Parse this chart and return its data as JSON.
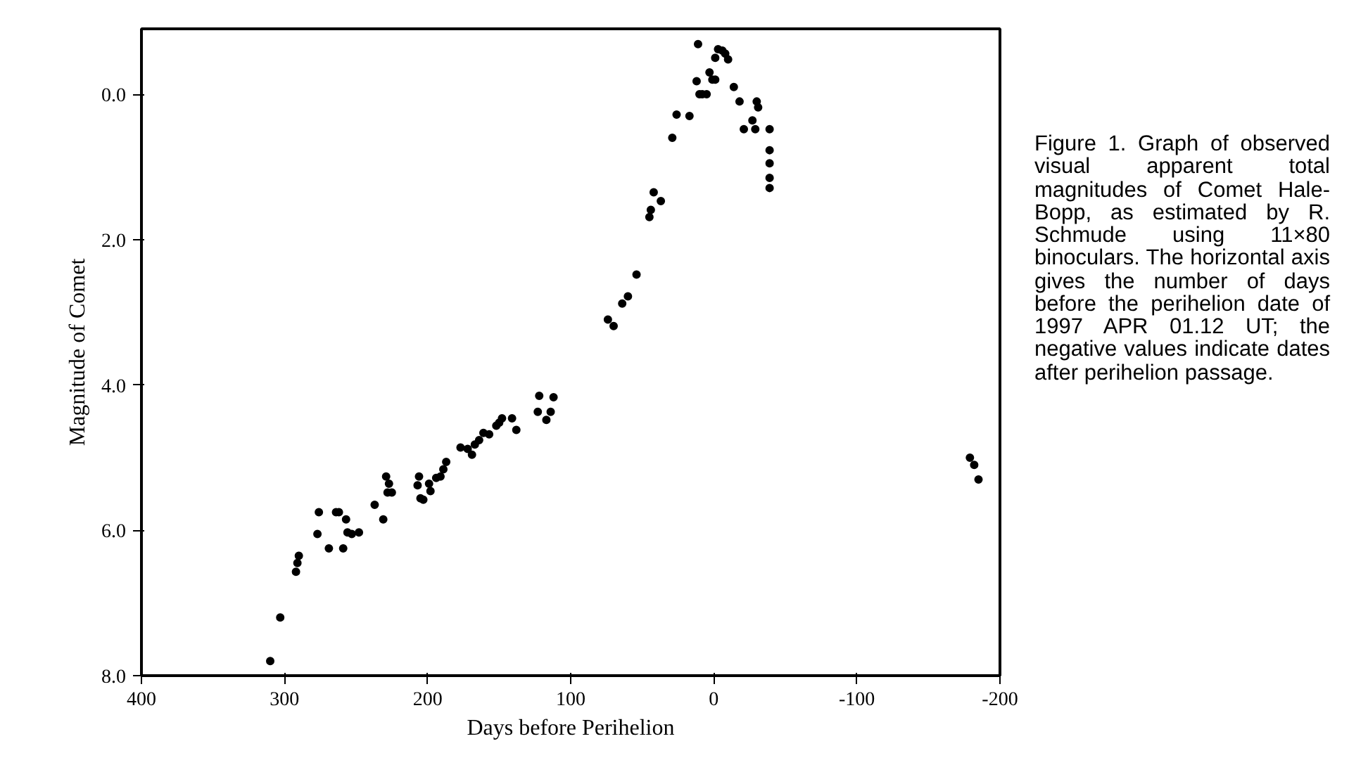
{
  "chart_data": {
    "type": "scatter",
    "xlabel": "Days before Perihelion",
    "ylabel": "Magnitude of Comet",
    "xlim": [
      400,
      -200
    ],
    "xticks": [
      400,
      300,
      200,
      100,
      0,
      -100,
      -200
    ],
    "ylim": [
      8.0,
      -0.9
    ],
    "yticks": [
      {
        "value": 0,
        "label": "0.0"
      },
      {
        "value": 2,
        "label": "2.0"
      },
      {
        "value": 4,
        "label": "4.0"
      },
      {
        "value": 6,
        "label": "6.0"
      },
      {
        "value": 8,
        "label": "8.0"
      }
    ],
    "grid": false,
    "marker": "circle",
    "annotations": [
      "Figure 1. Graph of observed visual apparent total magnitudes of Comet Hale-Bopp, as estimated by R. Schmude using 11×80 binoculars. The horizontal axis gives the number of days before the perihelion date of 1997 APR 01.12 UT; the negative values indicate dates after perihelion passage."
    ],
    "series": [
      {
        "color": "#000000",
        "x": [
          310,
          303,
          292,
          291,
          290,
          277,
          276,
          269,
          264,
          262,
          257,
          259,
          256,
          253,
          248,
          237,
          231,
          229,
          227,
          225,
          228,
          206,
          207,
          205,
          203,
          198,
          199,
          194,
          191,
          189,
          187,
          177,
          172,
          169,
          167,
          164,
          161,
          157,
          152,
          150,
          148,
          141,
          138,
          122,
          112,
          123,
          114,
          117,
          74,
          70,
          64,
          60,
          54,
          45,
          44,
          42,
          37,
          29,
          26,
          17,
          11,
          12,
          10,
          8,
          5,
          3,
          1,
          -1,
          -1,
          -3,
          -6,
          -8,
          -10,
          -14,
          -18,
          -21,
          -27,
          -29,
          -30,
          -31,
          -39,
          -39,
          -39,
          -39,
          -39,
          -179,
          -182,
          -185
        ],
        "values": [
          7.8,
          7.2,
          6.57,
          6.45,
          6.35,
          6.05,
          5.75,
          6.25,
          5.75,
          5.75,
          5.85,
          6.25,
          6.03,
          6.05,
          6.03,
          5.65,
          5.85,
          5.26,
          5.36,
          5.48,
          5.48,
          5.26,
          5.38,
          5.56,
          5.58,
          5.46,
          5.36,
          5.28,
          5.26,
          5.16,
          5.06,
          4.86,
          4.88,
          4.96,
          4.82,
          4.76,
          4.66,
          4.68,
          4.56,
          4.52,
          4.46,
          4.46,
          4.62,
          4.15,
          4.17,
          4.37,
          4.37,
          4.48,
          3.1,
          3.19,
          2.88,
          2.78,
          2.48,
          1.69,
          1.59,
          1.35,
          1.47,
          0.6,
          0.28,
          0.3,
          -0.69,
          -0.18,
          0.0,
          0.0,
          0.0,
          -0.3,
          -0.2,
          -0.2,
          -0.5,
          -0.62,
          -0.6,
          -0.56,
          -0.48,
          -0.1,
          0.1,
          0.48,
          0.36,
          0.48,
          0.1,
          0.18,
          0.48,
          0.77,
          0.95,
          1.15,
          1.29,
          5.0,
          5.1,
          5.3
        ]
      }
    ]
  }
}
